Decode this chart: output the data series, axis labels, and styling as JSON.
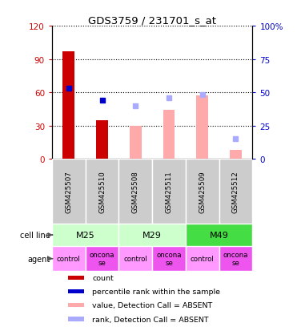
{
  "title": "GDS3759 / 231701_s_at",
  "samples": [
    "GSM425507",
    "GSM425510",
    "GSM425508",
    "GSM425511",
    "GSM425509",
    "GSM425512"
  ],
  "count_values": [
    97,
    35,
    null,
    null,
    null,
    null
  ],
  "percentile_rank": [
    53,
    44,
    null,
    null,
    null,
    null
  ],
  "value_absent": [
    null,
    null,
    30,
    44,
    57,
    8
  ],
  "rank_absent": [
    null,
    null,
    40,
    46,
    48,
    15
  ],
  "ylim_left": [
    0,
    120
  ],
  "ylim_right": [
    0,
    100
  ],
  "yticks_left": [
    0,
    30,
    60,
    90,
    120
  ],
  "yticks_right": [
    0,
    25,
    50,
    75,
    100
  ],
  "ytick_labels_right": [
    "0",
    "25",
    "50",
    "75",
    "100%"
  ],
  "cell_lines": [
    [
      "M25",
      0,
      2
    ],
    [
      "M29",
      2,
      4
    ],
    [
      "M49",
      4,
      6
    ]
  ],
  "cell_line_colors": [
    "#ccffcc",
    "#ccffcc",
    "#44dd44"
  ],
  "agents": [
    "control",
    "onconase",
    "control",
    "onconase",
    "control",
    "onconase"
  ],
  "agent_colors": [
    "#ff99ff",
    "#ee66ee",
    "#ff99ff",
    "#ee66ee",
    "#ff99ff",
    "#ee66ee"
  ],
  "bar_width": 0.35,
  "color_count": "#cc0000",
  "color_rank": "#0000cc",
  "color_value_absent": "#ffaaaa",
  "color_rank_absent": "#aaaaff",
  "color_gsm_bg": "#cccccc",
  "legend_items": [
    {
      "color": "#cc0000",
      "label": "count"
    },
    {
      "color": "#0000cc",
      "label": "percentile rank within the sample"
    },
    {
      "color": "#ffaaaa",
      "label": "value, Detection Call = ABSENT"
    },
    {
      "color": "#aaaaff",
      "label": "rank, Detection Call = ABSENT"
    }
  ]
}
